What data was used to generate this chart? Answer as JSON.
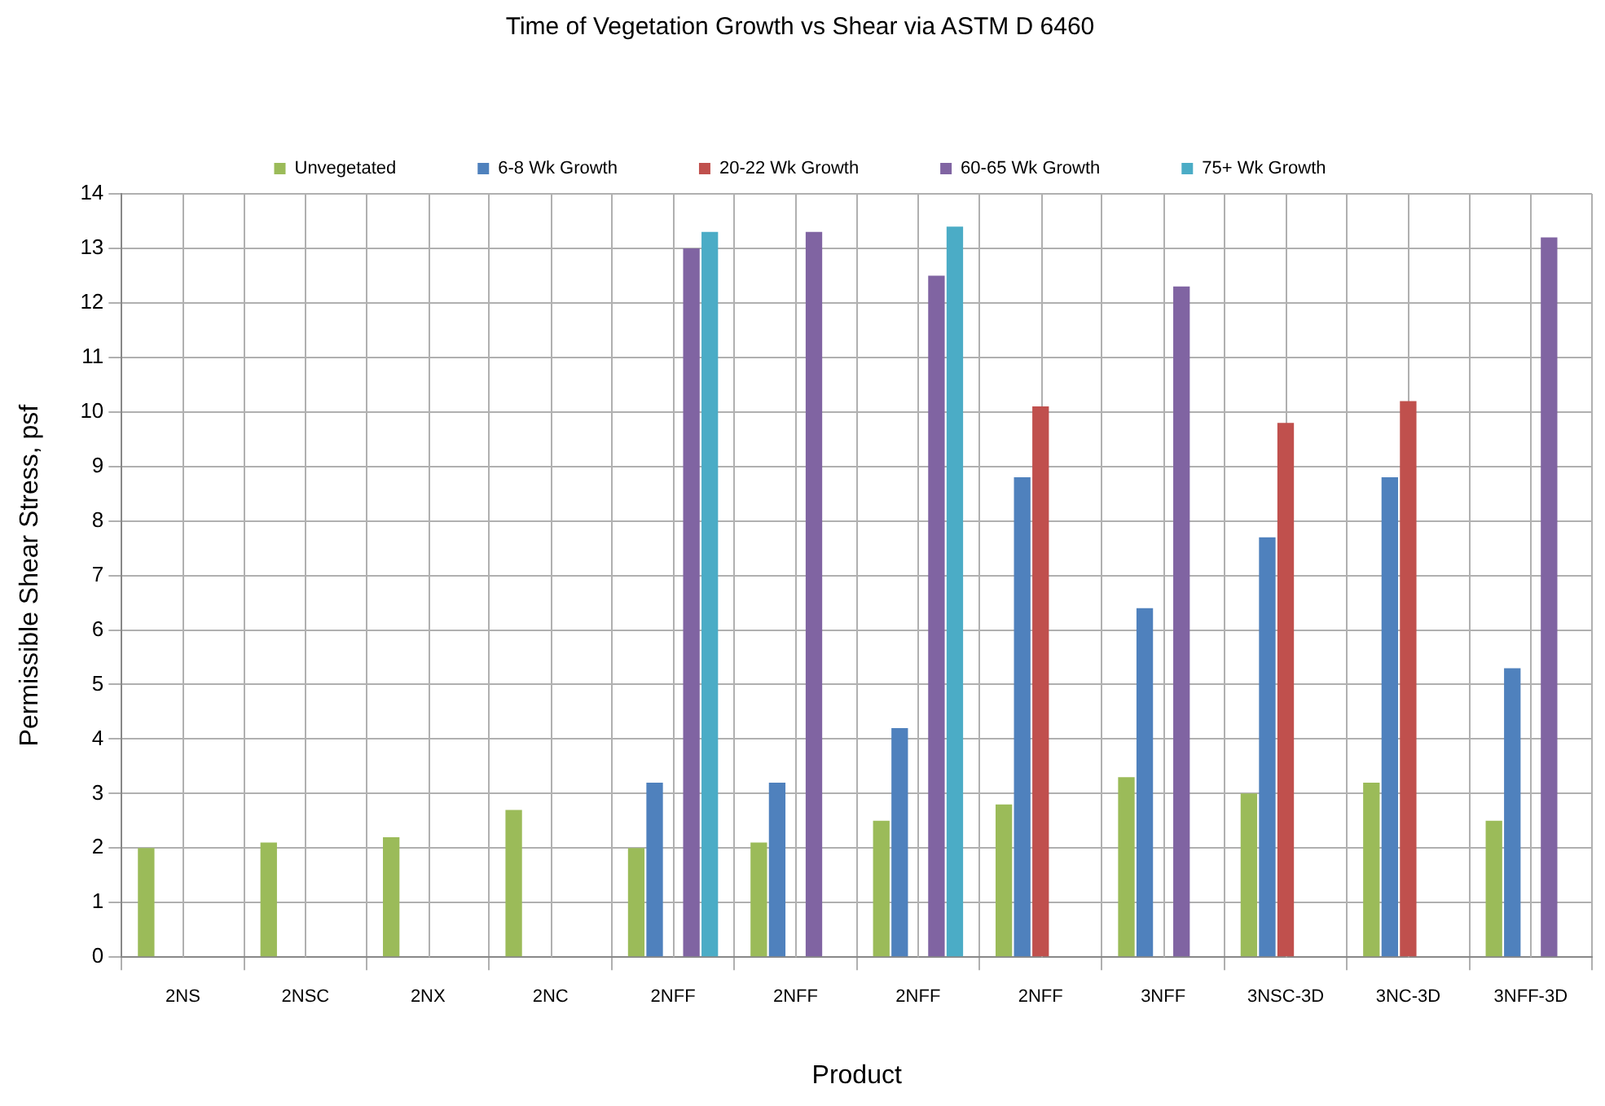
{
  "chart_data": {
    "type": "bar",
    "title": "Time of Vegetation Growth vs Shear via ASTM D 6460",
    "xlabel": "Product",
    "ylabel": "Permissible Shear Stress, psf",
    "categories": [
      "2NS",
      "2NSC",
      "2NX",
      "2NC",
      "2NFF",
      "2NFF",
      "2NFF",
      "2NFF",
      "3NFF",
      "3NSC-3D",
      "3NC-3D",
      "3NFF-3D"
    ],
    "series": [
      {
        "name": "Unvegetated",
        "color": "#9bbb59",
        "values": [
          2.0,
          2.1,
          2.2,
          2.7,
          2.0,
          2.1,
          2.5,
          2.8,
          3.3,
          3.0,
          3.2,
          2.5
        ]
      },
      {
        "name": "6-8 Wk Growth",
        "color": "#4f81bd",
        "values": [
          null,
          null,
          null,
          null,
          3.2,
          3.2,
          4.2,
          8.8,
          6.4,
          7.7,
          8.8,
          5.3
        ]
      },
      {
        "name": "20-22 Wk Growth",
        "color": "#c0504d",
        "values": [
          null,
          null,
          null,
          null,
          null,
          null,
          null,
          10.1,
          null,
          9.8,
          10.2,
          null
        ]
      },
      {
        "name": "60-65 Wk Growth",
        "color": "#8064a2",
        "values": [
          null,
          null,
          null,
          null,
          13.0,
          13.3,
          12.5,
          null,
          12.3,
          null,
          null,
          13.2
        ]
      },
      {
        "name": "75+ Wk Growth",
        "color": "#4bacc6",
        "values": [
          null,
          null,
          null,
          null,
          13.3,
          null,
          13.4,
          null,
          null,
          null,
          null,
          null
        ]
      }
    ],
    "ylim": [
      0,
      14
    ],
    "yticks": [
      0,
      1,
      2,
      3,
      4,
      5,
      6,
      7,
      8,
      9,
      10,
      11,
      12,
      13,
      14
    ],
    "grid": true,
    "legend": "top"
  }
}
